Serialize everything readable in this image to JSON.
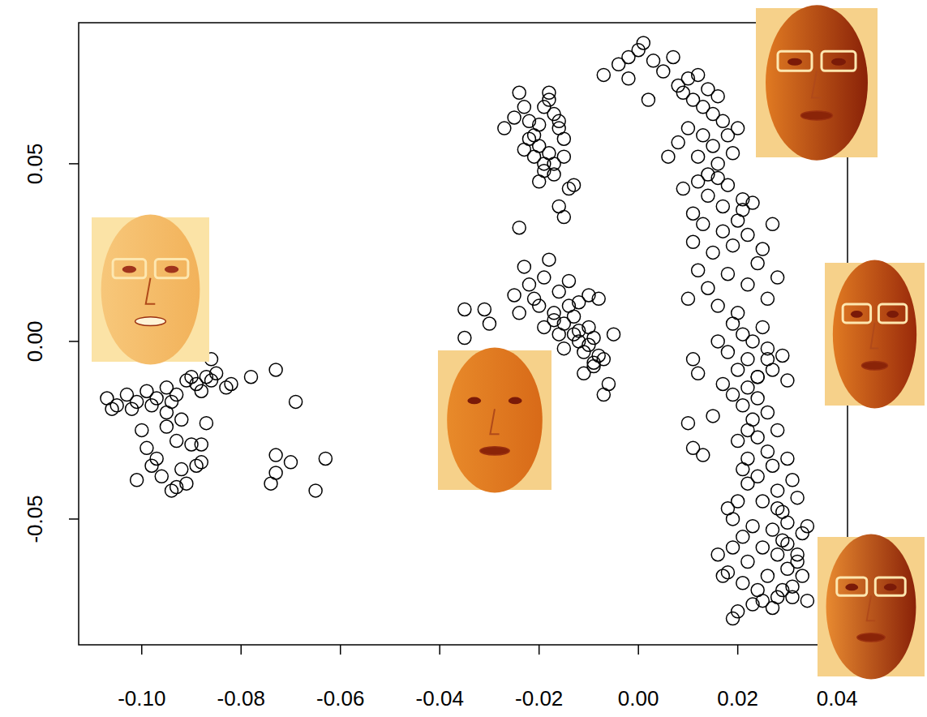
{
  "chart_data": {
    "type": "scatter",
    "marker": "circle-open",
    "color": "#000000",
    "grid": false,
    "xlim": [
      -0.1127,
      0.0421
    ],
    "ylim": [
      -0.0854,
      0.0897
    ],
    "xticks": [
      {
        "value": -0.1,
        "label": "-0.10"
      },
      {
        "value": -0.08,
        "label": "-0.08"
      },
      {
        "value": -0.06,
        "label": "-0.06"
      },
      {
        "value": -0.04,
        "label": "-0.04"
      },
      {
        "value": -0.02,
        "label": "-0.02"
      },
      {
        "value": 0,
        "label": "0.00"
      },
      {
        "value": 0.02,
        "label": "0.02"
      },
      {
        "value": 0.04,
        "label": "0.04"
      }
    ],
    "yticks": [
      -0.05,
      {
        "value": 0,
        "label": "0.00"
      },
      0.05
    ],
    "x": [
      -0.107,
      -0.105,
      -0.103,
      -0.101,
      -0.099,
      -0.097,
      -0.095,
      -0.093,
      -0.091,
      -0.089,
      -0.087,
      -0.085,
      -0.083,
      -0.106,
      -0.102,
      -0.098,
      -0.094,
      -0.09,
      -0.088,
      -0.086,
      -0.1,
      -0.099,
      -0.098,
      -0.096,
      -0.095,
      -0.094,
      -0.093,
      -0.092,
      -0.091,
      -0.09,
      -0.089,
      -0.088,
      -0.087,
      -0.097,
      -0.101,
      -0.095,
      -0.092,
      -0.086,
      -0.088,
      -0.093,
      -0.078,
      -0.073,
      -0.069,
      -0.073,
      -0.073,
      -0.074,
      -0.07,
      -0.065,
      -0.063,
      -0.082,
      -0.024,
      -0.023,
      -0.022,
      -0.021,
      -0.02,
      -0.019,
      -0.018,
      -0.017,
      -0.016,
      -0.015,
      -0.027,
      -0.025,
      -0.023,
      -0.021,
      -0.019,
      -0.018,
      -0.017,
      -0.016,
      -0.014,
      -0.013,
      -0.022,
      -0.02,
      -0.019,
      -0.017,
      -0.016,
      -0.015,
      -0.024,
      -0.02,
      -0.018,
      -0.015,
      -0.025,
      -0.023,
      -0.022,
      -0.021,
      -0.02,
      -0.019,
      -0.018,
      -0.017,
      -0.016,
      -0.015,
      -0.014,
      -0.013,
      -0.012,
      -0.011,
      -0.01,
      -0.009,
      -0.008,
      -0.007,
      -0.006,
      -0.005,
      -0.019,
      -0.017,
      -0.015,
      -0.013,
      -0.012,
      -0.011,
      -0.01,
      -0.009,
      -0.008,
      -0.007,
      -0.024,
      -0.016,
      -0.014,
      -0.012,
      -0.01,
      -0.009,
      -0.035,
      -0.031,
      -0.03,
      -0.035,
      0.0,
      0.001,
      -0.002,
      -0.004,
      0.003,
      0.005,
      0.007,
      -0.007,
      -0.002,
      0.002,
      0.008,
      0.009,
      0.01,
      0.011,
      0.012,
      0.013,
      0.014,
      0.015,
      0.016,
      0.017,
      0.008,
      0.01,
      0.012,
      0.013,
      0.014,
      0.015,
      0.016,
      0.018,
      0.019,
      0.02,
      0.006,
      0.009,
      0.011,
      0.012,
      0.014,
      0.016,
      0.017,
      0.018,
      0.02,
      0.021,
      0.011,
      0.013,
      0.015,
      0.017,
      0.019,
      0.021,
      0.022,
      0.023,
      0.025,
      0.027,
      0.01,
      0.012,
      0.014,
      0.016,
      0.018,
      0.02,
      0.022,
      0.024,
      0.026,
      0.028,
      0.016,
      0.018,
      0.019,
      0.02,
      0.021,
      0.022,
      0.023,
      0.024,
      0.025,
      0.026,
      0.017,
      0.019,
      0.021,
      0.022,
      0.023,
      0.024,
      0.026,
      0.027,
      0.028,
      0.03,
      0.011,
      0.012,
      0.01,
      0.011,
      0.013,
      0.02,
      0.022,
      0.024,
      0.026,
      0.029,
      0.021,
      0.022,
      0.024,
      0.025,
      0.027,
      0.028,
      0.029,
      0.03,
      0.031,
      0.032,
      0.019,
      0.021,
      0.023,
      0.025,
      0.027,
      0.028,
      0.029,
      0.03,
      0.032,
      0.033,
      0.018,
      0.019,
      0.021,
      0.022,
      0.024,
      0.026,
      0.028,
      0.03,
      0.031,
      0.033,
      0.016,
      0.017,
      0.019,
      0.02,
      0.023,
      0.025,
      0.027,
      0.029,
      0.031,
      0.034,
      0.015,
      0.018,
      0.02,
      0.024,
      0.026,
      0.028,
      0.03,
      0.032,
      0.034,
      0.022
    ],
    "values": [
      -0.016,
      -0.018,
      -0.015,
      -0.017,
      -0.014,
      -0.016,
      -0.013,
      -0.015,
      -0.011,
      -0.012,
      -0.01,
      -0.009,
      -0.013,
      -0.019,
      -0.019,
      -0.018,
      -0.017,
      -0.01,
      -0.014,
      -0.011,
      -0.025,
      -0.03,
      -0.035,
      -0.038,
      -0.02,
      -0.042,
      -0.028,
      -0.036,
      -0.04,
      -0.029,
      -0.035,
      -0.034,
      -0.023,
      -0.033,
      -0.039,
      -0.024,
      -0.022,
      -0.005,
      -0.029,
      -0.041,
      -0.01,
      -0.008,
      -0.017,
      -0.032,
      -0.037,
      -0.04,
      -0.034,
      -0.042,
      -0.033,
      -0.012,
      0.07,
      0.066,
      0.062,
      0.058,
      0.055,
      0.05,
      0.068,
      0.064,
      0.06,
      0.057,
      0.06,
      0.063,
      0.054,
      0.052,
      0.048,
      0.053,
      0.047,
      0.062,
      0.043,
      0.044,
      0.057,
      0.061,
      0.066,
      0.05,
      0.038,
      0.035,
      0.032,
      0.045,
      0.07,
      0.052,
      0.013,
      0.021,
      0.016,
      0.012,
      0.01,
      0.018,
      0.023,
      0.008,
      0.014,
      0.005,
      0.01,
      0.002,
      0.0,
      -0.003,
      0.004,
      -0.007,
      0.012,
      -0.005,
      -0.012,
      0.002,
      0.004,
      0.006,
      -0.002,
      0.007,
      0.003,
      -0.009,
      -0.001,
      0.001,
      -0.004,
      -0.015,
      0.008,
      0.002,
      0.017,
      0.011,
      0.013,
      -0.006,
      0.009,
      0.009,
      0.005,
      0.001,
      0.082,
      0.084,
      0.08,
      0.078,
      0.079,
      0.076,
      0.08,
      0.075,
      0.074,
      0.068,
      0.072,
      0.07,
      0.074,
      0.068,
      0.075,
      0.066,
      0.071,
      0.064,
      0.069,
      0.062,
      0.056,
      0.06,
      0.052,
      0.058,
      0.047,
      0.055,
      0.05,
      0.058,
      0.053,
      0.06,
      0.052,
      0.043,
      0.036,
      0.045,
      0.041,
      0.046,
      0.038,
      0.044,
      0.034,
      0.04,
      0.028,
      0.033,
      0.025,
      0.031,
      0.027,
      0.037,
      0.03,
      0.039,
      0.026,
      0.033,
      0.012,
      0.02,
      0.015,
      0.01,
      0.019,
      0.008,
      0.016,
      0.022,
      0.012,
      0.018,
      0.0,
      -0.003,
      0.005,
      -0.008,
      0.002,
      -0.005,
      0.0,
      -0.01,
      0.004,
      -0.002,
      -0.012,
      -0.015,
      -0.018,
      -0.013,
      -0.022,
      -0.016,
      -0.02,
      -0.008,
      -0.025,
      -0.011,
      -0.005,
      -0.009,
      -0.023,
      -0.03,
      -0.032,
      -0.028,
      -0.033,
      -0.027,
      -0.031,
      -0.004,
      -0.036,
      -0.04,
      -0.038,
      -0.045,
      -0.035,
      -0.042,
      -0.048,
      -0.033,
      -0.039,
      -0.044,
      -0.05,
      -0.055,
      -0.052,
      -0.058,
      -0.053,
      -0.06,
      -0.056,
      -0.051,
      -0.062,
      -0.054,
      -0.065,
      -0.058,
      -0.068,
      -0.062,
      -0.07,
      -0.066,
      -0.072,
      -0.064,
      -0.069,
      -0.066,
      -0.06,
      -0.066,
      -0.078,
      -0.076,
      -0.074,
      -0.073,
      -0.075,
      -0.07,
      -0.072,
      -0.073,
      -0.021,
      -0.047,
      -0.045,
      -0.01,
      -0.005,
      -0.047,
      -0.057,
      -0.06,
      -0.052,
      -0.025
    ]
  }
}
